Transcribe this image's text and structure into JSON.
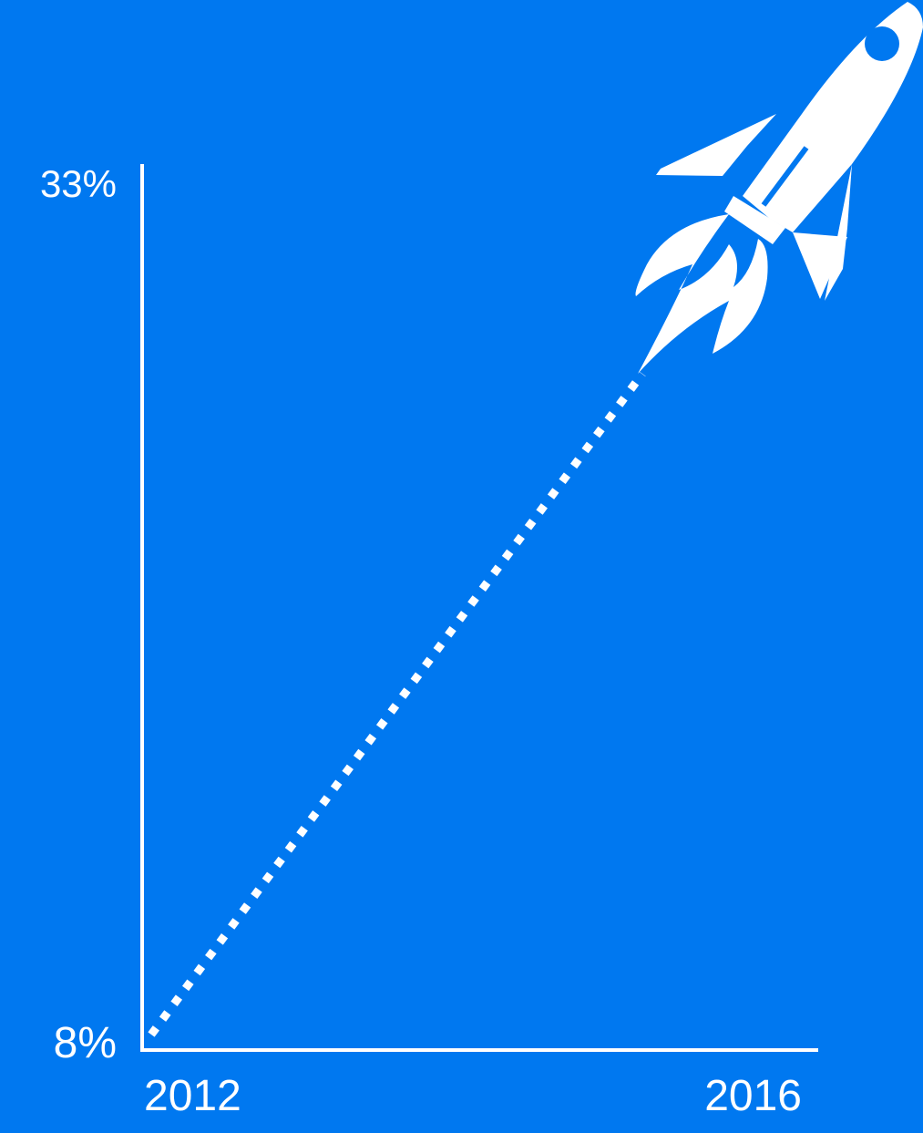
{
  "chart_data": {
    "type": "line",
    "title": "",
    "xlabel": "",
    "ylabel": "",
    "x": [
      "2012",
      "2016"
    ],
    "series": [
      {
        "values": [
          8,
          33
        ]
      }
    ],
    "ylim": [
      8,
      33
    ],
    "ytick_labels": [
      "8%",
      "33%"
    ],
    "xtick_labels": [
      "2012",
      "2016"
    ],
    "line_style": "dotted",
    "grid": false,
    "legend": "none",
    "decoration": "rocket-icon",
    "colors": {
      "background": "#0078f0",
      "foreground": "#ffffff"
    }
  }
}
